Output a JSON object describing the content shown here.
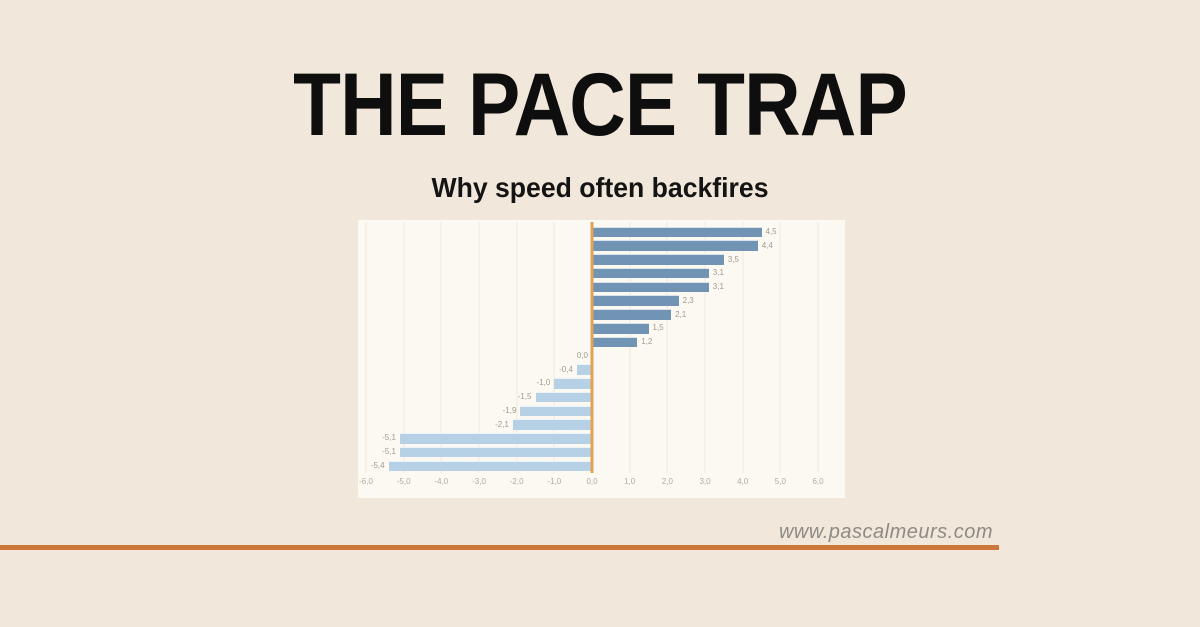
{
  "page": {
    "title": "THE PACE TRAP",
    "subtitle": "Why speed often backfires",
    "website": "www.pascalmeurs.com"
  },
  "colors": {
    "background": "#f1e7da",
    "chart_background": "#fcf9f3",
    "accent_rule": "#cd7839"
  },
  "chart_data": {
    "type": "bar",
    "orientation": "horizontal",
    "title": "",
    "xlabel": "",
    "ylabel": "",
    "xlim": [
      -6.0,
      6.0
    ],
    "grid": true,
    "values": [
      4.5,
      4.4,
      3.5,
      3.1,
      3.1,
      2.3,
      2.1,
      1.5,
      1.2,
      0.0,
      -0.4,
      -1.0,
      -1.5,
      -1.9,
      -2.1,
      -5.1,
      -5.1,
      -5.4
    ],
    "value_labels": [
      "4,5",
      "4,4",
      "3,5",
      "3,1",
      "3,1",
      "2,3",
      "2,1",
      "1,5",
      "1,2",
      "0,0",
      "-0,4",
      "-1,0",
      "-1,5",
      "-1,9",
      "-2,1",
      "-5,1",
      "-5,1",
      "-5,4"
    ],
    "x_ticks": [
      "-6,0",
      "-5,0",
      "-4,0",
      "-3,0",
      "-2,0",
      "-1,0",
      "0,0",
      "1,0",
      "2,0",
      "3,0",
      "4,0",
      "5,0",
      "6,0"
    ],
    "positive_color": "#7294b4",
    "negative_color": "#b6d1e5",
    "zero_line_color": "#e2a255",
    "gridline_color": "#efe7db"
  }
}
